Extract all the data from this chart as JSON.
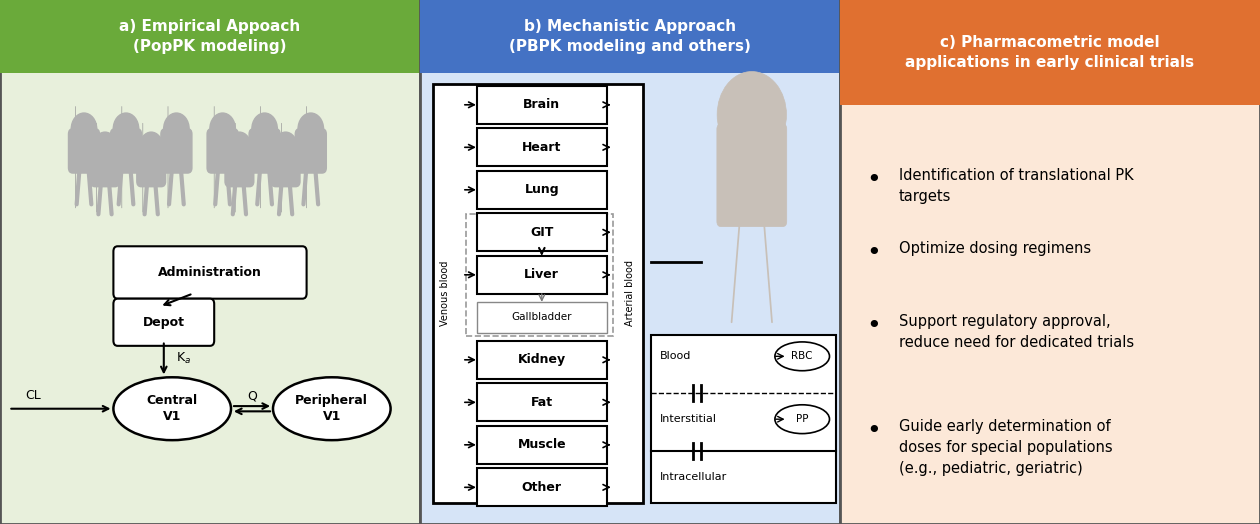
{
  "panel_a": {
    "title": "a) Empirical Appoach\n(PopPK modeling)",
    "title_bg": "#6aaa3a",
    "bg": "#e8f0dc",
    "title_color": "white"
  },
  "panel_b": {
    "title": "b) Mechanistic Approach\n(PBPK modeling and others)",
    "title_bg": "#4472c4",
    "bg": "#d6e4f7",
    "title_color": "white"
  },
  "panel_c": {
    "title": "c) Pharmacometric model\napplications in early clinical trials",
    "title_bg": "#e07030",
    "bg": "#fce8d8",
    "title_color": "white",
    "bullets": [
      "Identification of translational PK\ntargets",
      "Optimize dosing regimens",
      "Support regulatory approval,\nreduce need for dedicated trials",
      "Guide early determination of\ndoses for special populations\n(e.g., pediatric, geriatric)"
    ]
  },
  "organs": [
    "Brain",
    "Heart",
    "Lung",
    "GIT",
    "Liver",
    "Gallbladder",
    "Kidney",
    "Fat",
    "Muscle",
    "Other"
  ],
  "border_color": "#333333",
  "outer_border": "#222222"
}
